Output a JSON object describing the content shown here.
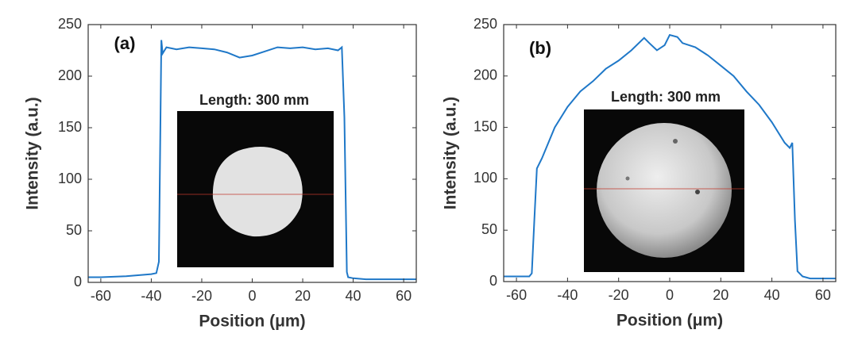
{
  "chart_data": [
    {
      "type": "line",
      "panel_label": "(a)",
      "inset_label": "Length: 300 mm",
      "xlabel": "Position (μm)",
      "ylabel": "Intensity (a.u.)",
      "color": "#1f78c8",
      "x": [
        -65,
        -60,
        -50,
        -40,
        -38,
        -37,
        -36,
        -35.5,
        -34,
        -30,
        -25,
        -20,
        -15,
        -10,
        -5,
        0,
        5,
        10,
        15,
        20,
        25,
        30,
        34,
        35.5,
        36.5,
        37.5,
        38,
        40,
        45,
        50,
        60,
        65
      ],
      "values": [
        5,
        5,
        6,
        8,
        9,
        20,
        235,
        222,
        228,
        226,
        228,
        227,
        226,
        223,
        218,
        220,
        224,
        228,
        227,
        228,
        226,
        227,
        225,
        228,
        160,
        10,
        5,
        4,
        3,
        3,
        3,
        3
      ],
      "xlim": [
        -65,
        65
      ],
      "ylim": [
        0,
        250
      ],
      "xticks": [
        -60,
        -40,
        -20,
        0,
        20,
        40,
        60
      ],
      "yticks": [
        0,
        50,
        100,
        150,
        200,
        250
      ]
    },
    {
      "type": "line",
      "panel_label": "(b)",
      "inset_label": "Length: 300 mm",
      "xlabel": "Position (μm)",
      "ylabel": "Intensity (a.u.)",
      "color": "#1f78c8",
      "x": [
        -65,
        -60,
        -55,
        -54,
        -53,
        -52,
        -50,
        -45,
        -40,
        -35,
        -30,
        -25,
        -20,
        -15,
        -10,
        -8,
        -5,
        -2,
        0,
        3,
        5,
        10,
        15,
        20,
        25,
        30,
        35,
        40,
        45,
        47,
        48,
        49,
        50,
        52,
        55,
        65
      ],
      "values": [
        5,
        5,
        5,
        8,
        60,
        110,
        120,
        150,
        170,
        185,
        195,
        207,
        215,
        225,
        237,
        232,
        225,
        230,
        240,
        238,
        232,
        228,
        220,
        210,
        200,
        185,
        172,
        155,
        135,
        130,
        135,
        60,
        10,
        5,
        3,
        3
      ],
      "xlim": [
        -65,
        65
      ],
      "ylim": [
        0,
        250
      ],
      "xticks": [
        -60,
        -40,
        -20,
        0,
        20,
        40,
        60
      ],
      "yticks": [
        0,
        50,
        100,
        150,
        200,
        250
      ]
    }
  ]
}
